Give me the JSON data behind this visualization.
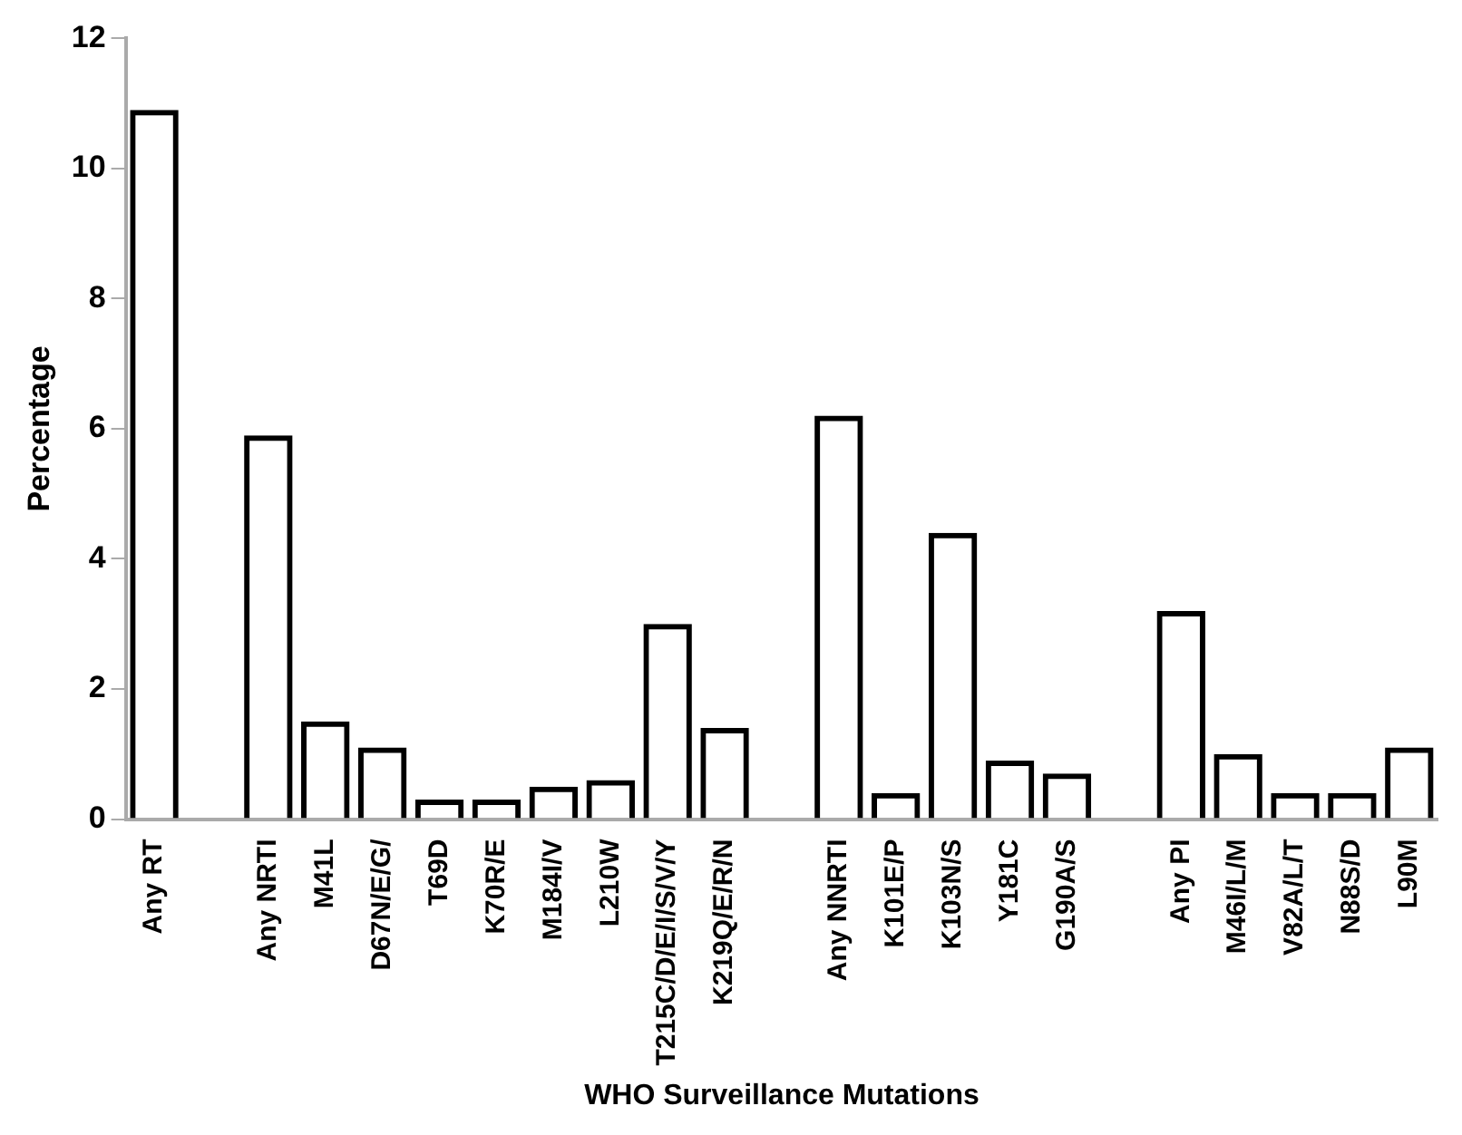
{
  "chart_data": {
    "type": "bar",
    "xlabel": "WHO Surveillance Mutations",
    "ylabel": "Percentage",
    "categories": [
      "Any RT",
      null,
      "Any NRTI",
      "M41L",
      "D67N/E/G/",
      "T69D",
      "K70R/E",
      "M184I/V",
      "L210W",
      "T215C/D/E/I/S/V/Y",
      "K219Q/E/R/N",
      null,
      "Any NNRTI",
      "K101E/P",
      "K103N/S",
      "Y181C",
      "G190A/S",
      null,
      "Any PI",
      "M46I/L/M",
      "V82A/L/T",
      "N88S/D",
      "L90M"
    ],
    "values": [
      10.9,
      null,
      5.9,
      1.5,
      1.1,
      0.3,
      0.3,
      0.5,
      0.6,
      3.0,
      1.4,
      null,
      6.2,
      0.4,
      4.4,
      0.9,
      0.7,
      null,
      3.2,
      1.0,
      0.4,
      0.4,
      1.1
    ],
    "color": "#000000",
    "ylim": [
      0,
      12
    ],
    "yticks": [
      0,
      2,
      4,
      6,
      8,
      10,
      12
    ],
    "grid": false,
    "legend": false
  }
}
